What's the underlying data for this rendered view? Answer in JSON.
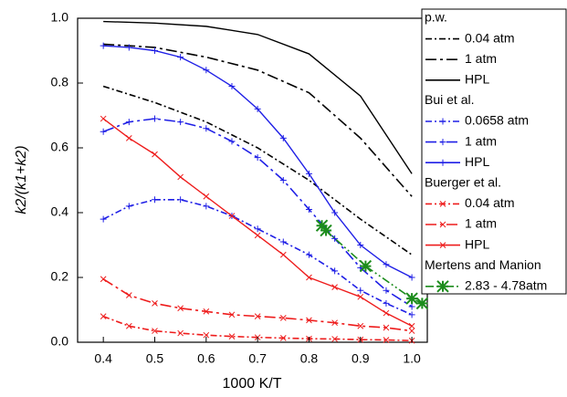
{
  "chart_data": {
    "type": "line",
    "xlabel": "1000 K/T",
    "ylabel": "k2/(k1+k2)",
    "xlim": [
      0.35,
      1.03
    ],
    "ylim": [
      0,
      1.0
    ],
    "xticks": [
      0.4,
      0.5,
      0.6,
      0.7,
      0.8,
      0.9,
      {
        "value": 1,
        "label": "1.0"
      }
    ],
    "yticks": [
      {
        "value": 0,
        "label": "0.0"
      },
      0.2,
      0.4,
      0.6,
      0.8,
      {
        "value": 1,
        "label": "1.0"
      }
    ],
    "groups": [
      {
        "title": "p.w.",
        "series": [
          {
            "name": "0.04 atm",
            "color": "#000000",
            "dash": "dashdot",
            "marker": "none",
            "x": [
              0.4,
              0.5,
              0.6,
              0.7,
              0.8,
              0.9,
              1.0
            ],
            "values": [
              0.79,
              0.74,
              0.68,
              0.6,
              0.5,
              0.38,
              0.27
            ]
          },
          {
            "name": "1 atm",
            "color": "#000000",
            "dash": "longdashdot",
            "marker": "none",
            "x": [
              0.4,
              0.5,
              0.6,
              0.7,
              0.8,
              0.9,
              1.0
            ],
            "values": [
              0.92,
              0.91,
              0.88,
              0.84,
              0.77,
              0.63,
              0.45
            ]
          },
          {
            "name": "HPL",
            "color": "#000000",
            "dash": "solid",
            "marker": "none",
            "x": [
              0.4,
              0.5,
              0.6,
              0.7,
              0.8,
              0.9,
              1.0
            ],
            "values": [
              0.99,
              0.985,
              0.975,
              0.95,
              0.89,
              0.76,
              0.52
            ]
          }
        ]
      },
      {
        "title": "Bui et al.",
        "series": [
          {
            "name": "0.0658 atm",
            "color": "#1f1fe6",
            "dash": "dashdot",
            "marker": "plus",
            "x": [
              0.4,
              0.45,
              0.5,
              0.55,
              0.6,
              0.65,
              0.7,
              0.75,
              0.8,
              0.85,
              0.9,
              0.95,
              1.0
            ],
            "values": [
              0.38,
              0.42,
              0.44,
              0.44,
              0.42,
              0.39,
              0.35,
              0.31,
              0.27,
              0.22,
              0.16,
              0.12,
              0.085
            ]
          },
          {
            "name": "1 atm",
            "color": "#1f1fe6",
            "dash": "longdashdot",
            "marker": "plus",
            "x": [
              0.4,
              0.45,
              0.5,
              0.55,
              0.6,
              0.65,
              0.7,
              0.75,
              0.8,
              0.85,
              0.9,
              0.95,
              1.0
            ],
            "values": [
              0.65,
              0.68,
              0.69,
              0.68,
              0.66,
              0.62,
              0.57,
              0.5,
              0.41,
              0.32,
              0.23,
              0.16,
              0.11
            ]
          },
          {
            "name": "HPL",
            "color": "#1f1fe6",
            "dash": "solid",
            "marker": "plus",
            "x": [
              0.4,
              0.45,
              0.5,
              0.55,
              0.6,
              0.65,
              0.7,
              0.75,
              0.8,
              0.85,
              0.9,
              0.95,
              1.0
            ],
            "values": [
              0.915,
              0.91,
              0.9,
              0.88,
              0.84,
              0.79,
              0.72,
              0.63,
              0.52,
              0.4,
              0.3,
              0.24,
              0.2
            ]
          }
        ]
      },
      {
        "title": "Buerger et al.",
        "series": [
          {
            "name": "0.04 atm",
            "color": "#ee1c1c",
            "dash": "dashdot",
            "marker": "cross",
            "x": [
              0.4,
              0.45,
              0.5,
              0.55,
              0.6,
              0.65,
              0.7,
              0.75,
              0.8,
              0.85,
              0.9,
              0.95,
              1.0
            ],
            "values": [
              0.08,
              0.05,
              0.035,
              0.028,
              0.022,
              0.018,
              0.015,
              0.013,
              0.011,
              0.01,
              0.008,
              0.007,
              0.005
            ]
          },
          {
            "name": "1 atm",
            "color": "#ee1c1c",
            "dash": "longdashdot",
            "marker": "cross",
            "x": [
              0.4,
              0.45,
              0.5,
              0.55,
              0.6,
              0.65,
              0.7,
              0.75,
              0.8,
              0.85,
              0.9,
              0.95,
              1.0
            ],
            "values": [
              0.195,
              0.145,
              0.12,
              0.105,
              0.095,
              0.085,
              0.08,
              0.075,
              0.068,
              0.06,
              0.05,
              0.045,
              0.035
            ]
          },
          {
            "name": "HPL",
            "color": "#ee1c1c",
            "dash": "solid",
            "marker": "cross",
            "x": [
              0.4,
              0.45,
              0.5,
              0.55,
              0.6,
              0.65,
              0.7,
              0.75,
              0.8,
              0.85,
              0.9,
              0.95,
              1.0
            ],
            "values": [
              0.69,
              0.63,
              0.58,
              0.51,
              0.45,
              0.39,
              0.33,
              0.27,
              0.2,
              0.17,
              0.14,
              0.09,
              0.05
            ]
          }
        ]
      },
      {
        "title": "Mertens and Manion",
        "series": [
          {
            "name": "2.83 - 4.78atm",
            "color": "#1c8c1c",
            "dash": "dashdotdot",
            "marker": "star",
            "x": [
              0.825,
              0.833,
              0.91,
              1.0,
              1.02
            ],
            "values": [
              0.36,
              0.345,
              0.235,
              0.135,
              0.12
            ]
          }
        ]
      }
    ]
  }
}
